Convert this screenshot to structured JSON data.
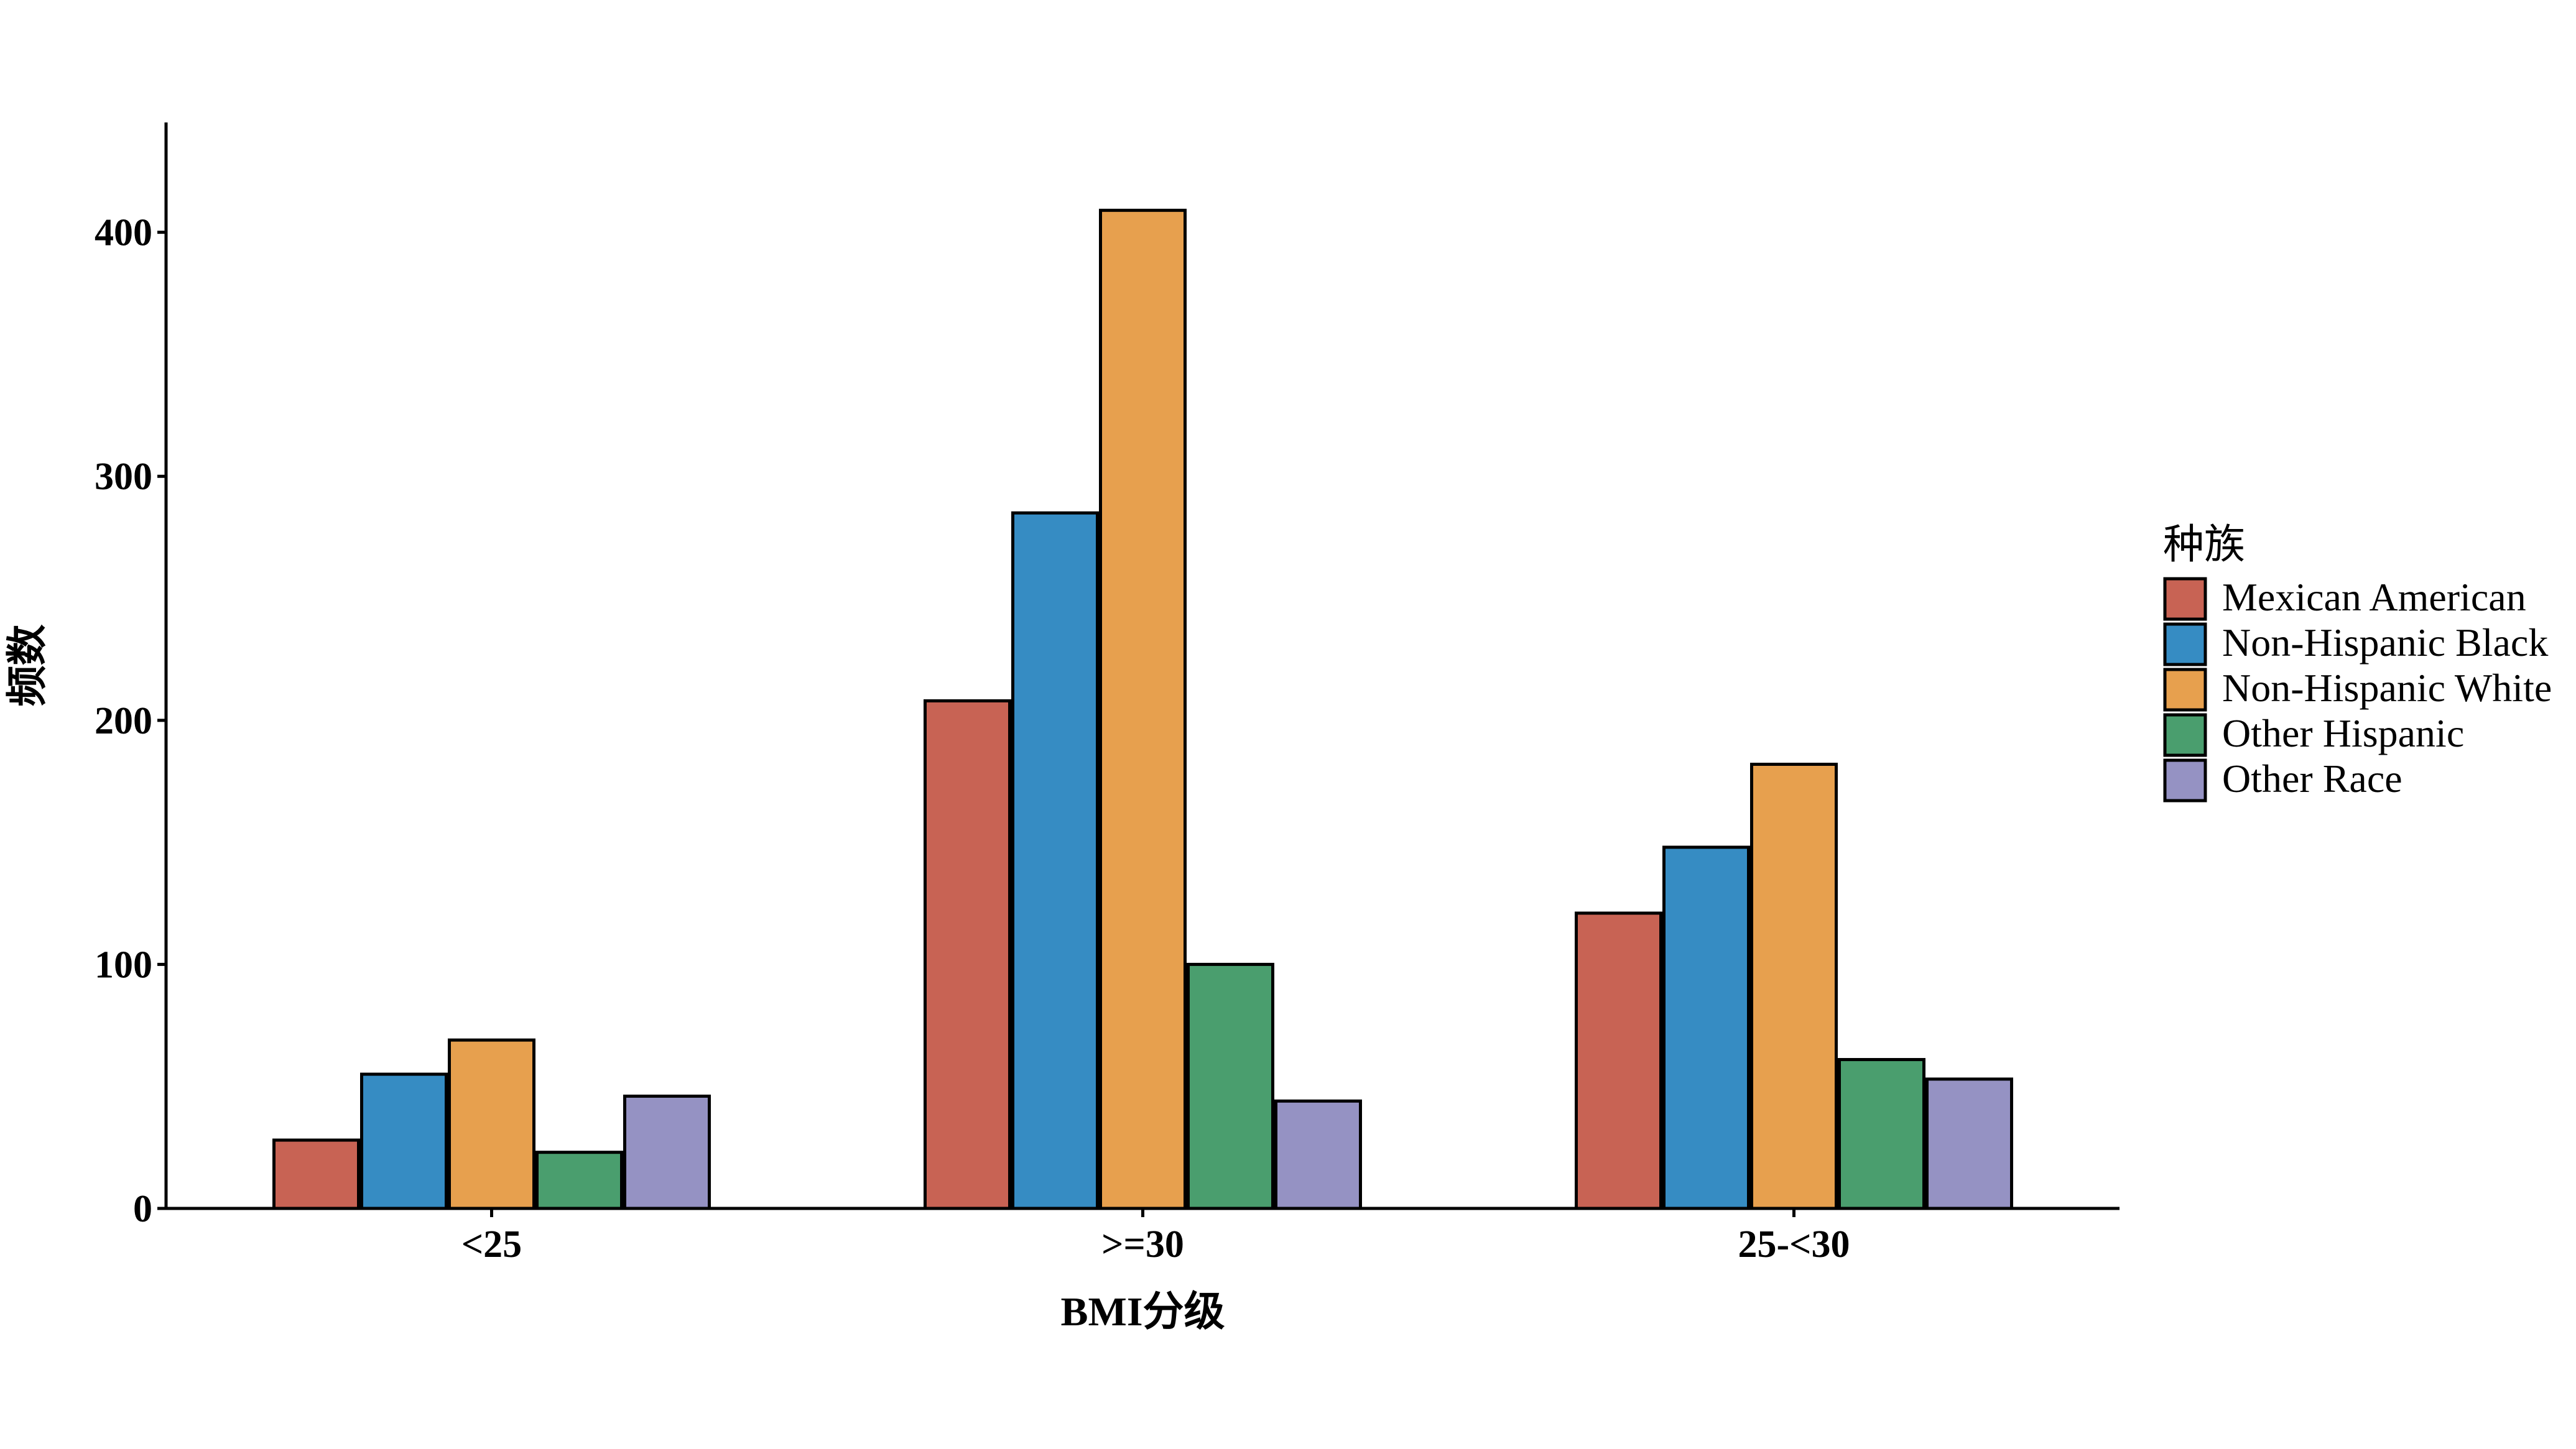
{
  "chart_data": {
    "type": "bar",
    "title": "",
    "xlabel": "BMI分级",
    "ylabel": "频数",
    "categories": [
      "<25",
      ">=30",
      "25-<30"
    ],
    "series": [
      {
        "name": "Mexican American",
        "color": "#C86354",
        "values": [
          28,
          208,
          121
        ]
      },
      {
        "name": "Non-Hispanic Black",
        "color": "#368CC3",
        "values": [
          55,
          285,
          148
        ]
      },
      {
        "name": "Non-Hispanic White",
        "color": "#E7A04E",
        "values": [
          69,
          409,
          182
        ]
      },
      {
        "name": "Other Hispanic",
        "color": "#4A9E6E",
        "values": [
          23,
          100,
          61
        ]
      },
      {
        "name": "Other Race",
        "color": "#9592C3",
        "values": [
          46,
          44,
          53
        ]
      }
    ],
    "yticks": [
      0,
      100,
      200,
      300,
      400
    ],
    "ylim": [
      0,
      445
    ],
    "grid": false,
    "legend": {
      "title": "种族",
      "position": "right"
    }
  }
}
